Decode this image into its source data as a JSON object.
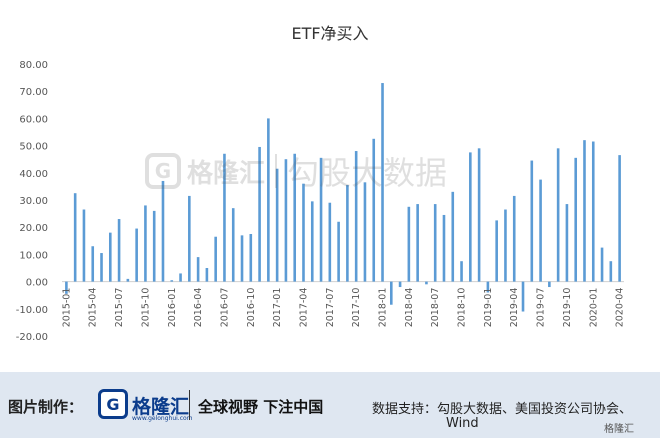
{
  "chart_data": {
    "type": "bar",
    "title": "ETF净买入",
    "xlabel": "",
    "ylabel": "",
    "ylim": [
      -20,
      80
    ],
    "yticks": [
      "80.00",
      "70.00",
      "60.00",
      "50.00",
      "40.00",
      "30.00",
      "20.00",
      "10.00",
      "0.00",
      "-10.00",
      "-20.00"
    ],
    "grid": false,
    "bar_color": "#5b9bd5",
    "tick_labels": [
      {
        "index": 0,
        "label": "2015-01"
      },
      {
        "index": 3,
        "label": "2015-04"
      },
      {
        "index": 6,
        "label": "2015-07"
      },
      {
        "index": 9,
        "label": "2015-10"
      },
      {
        "index": 12,
        "label": "2016-01"
      },
      {
        "index": 15,
        "label": "2016-04"
      },
      {
        "index": 18,
        "label": "2016-07"
      },
      {
        "index": 21,
        "label": "2016-10"
      },
      {
        "index": 24,
        "label": "2017-01"
      },
      {
        "index": 27,
        "label": "2017-04"
      },
      {
        "index": 30,
        "label": "2017-07"
      },
      {
        "index": 33,
        "label": "2017-10"
      },
      {
        "index": 36,
        "label": "2018-01"
      },
      {
        "index": 39,
        "label": "2018-04"
      },
      {
        "index": 42,
        "label": "2018-07"
      },
      {
        "index": 45,
        "label": "2018-10"
      },
      {
        "index": 48,
        "label": "2019-01"
      },
      {
        "index": 51,
        "label": "2019-04"
      },
      {
        "index": 54,
        "label": "2019-07"
      },
      {
        "index": 57,
        "label": "2019-10"
      },
      {
        "index": 60,
        "label": "2020-01"
      },
      {
        "index": 63,
        "label": "2020-04"
      }
    ],
    "values": [
      -4.5,
      32.5,
      26.5,
      13.0,
      10.5,
      18.0,
      23.0,
      1.0,
      19.5,
      28.0,
      26.0,
      37.0,
      0.5,
      3.0,
      31.5,
      9.0,
      5.0,
      16.5,
      47.0,
      27.0,
      17.0,
      17.5,
      49.5,
      60.0,
      41.5,
      45.0,
      47.0,
      36.0,
      29.5,
      45.5,
      29.0,
      22.0,
      35.5,
      48.0,
      36.5,
      52.5,
      73.0,
      -8.5,
      -2.0,
      27.5,
      28.5,
      -1.0,
      28.5,
      24.5,
      33.0,
      7.5,
      47.5,
      49.0,
      -4.0,
      22.5,
      26.5,
      31.5,
      -11.0,
      44.5,
      37.5,
      -2.0,
      49.0,
      28.5,
      45.5,
      52.0,
      51.5,
      12.5,
      7.5,
      46.5
    ]
  },
  "watermark": {
    "logo": "G",
    "brand": "格隆汇",
    "text": "勾股大数据"
  },
  "footer": {
    "label": "图片制作：",
    "logo": "G",
    "brand": "格隆汇",
    "url": "www.gelonghui.com",
    "slogan": "全球视野 下注中国",
    "source_line1": "数据支持：勾股大数据、美国投资公司协会、",
    "source_line2": "Wind",
    "corner": "格隆汇"
  }
}
